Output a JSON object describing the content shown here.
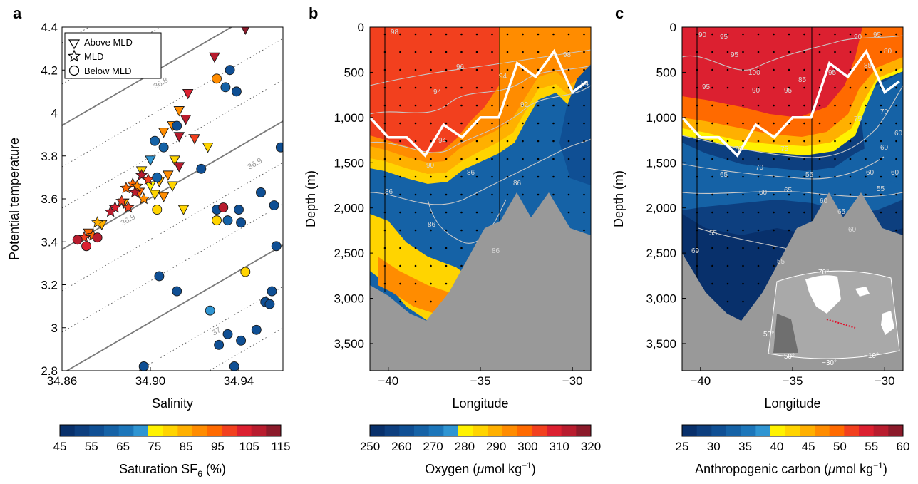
{
  "colors": {
    "ramp": [
      "#08306b",
      "#0d3f7f",
      "#0f4f94",
      "#1562a6",
      "#1c76ba",
      "#2f95d2",
      "#fff200",
      "#ffd400",
      "#ffb000",
      "#ff8c00",
      "#ff6a00",
      "#f2401e",
      "#dc2030",
      "#b81c2e",
      "#8b1a2a"
    ],
    "topo_gray": "#999999",
    "contour": "#c8c8c8",
    "mld_line": "#ffffff"
  },
  "chart_data": [
    {
      "panel": "a",
      "type": "scatter",
      "xlabel": "Salinity",
      "ylabel": "Potential temperature",
      "xlim": [
        34.86,
        34.96
      ],
      "ylim": [
        2.8,
        4.4
      ],
      "xticks": [
        "34.86",
        "34.90",
        "34.94"
      ],
      "yticks": [
        "2.8",
        "3",
        "3.2",
        "3.4",
        "3.6",
        "3.8",
        "4",
        "4.2",
        "4.4"
      ],
      "legend": {
        "position": "top-left",
        "entries": [
          "Above MLD",
          "MLD",
          "Below MLD"
        ]
      },
      "isopycnal_labels": [
        "36.8",
        "36.9",
        "36.9",
        "37"
      ],
      "colorbar": {
        "label": "Saturation SF",
        "label_sub": "6",
        "label_tail": " (%)",
        "ticks": [
          "45",
          "55",
          "65",
          "75",
          "85",
          "95",
          "105",
          "115"
        ]
      },
      "series": [
        {
          "marker": "triangle",
          "points": [
            [
              34.943,
              4.39,
              115
            ],
            [
              34.929,
              4.26,
              110
            ],
            [
              34.917,
              4.09,
              105
            ],
            [
              34.913,
              4.01,
              90
            ],
            [
              34.916,
              3.97,
              108
            ],
            [
              34.91,
              3.94,
              90
            ],
            [
              34.92,
              3.88,
              100
            ],
            [
              34.906,
              3.91,
              90
            ],
            [
              34.913,
              3.89,
              108
            ],
            [
              34.926,
              3.84,
              82
            ],
            [
              34.9,
              3.78,
              70
            ],
            [
              34.911,
              3.78,
              82
            ],
            [
              34.913,
              3.75,
              108
            ],
            [
              34.908,
              3.71,
              88
            ],
            [
              34.896,
              3.73,
              78
            ],
            [
              34.904,
              3.68,
              85
            ],
            [
              34.9,
              3.66,
              75
            ],
            [
              34.91,
              3.66,
              80
            ],
            [
              34.906,
              3.61,
              90
            ],
            [
              34.895,
              3.63,
              95
            ],
            [
              34.902,
              3.62,
              82
            ],
            [
              34.888,
              3.58,
              85
            ],
            [
              34.915,
              3.55,
              80
            ],
            [
              34.878,
              3.48,
              85
            ],
            [
              34.872,
              3.44,
              95
            ]
          ]
        },
        {
          "marker": "star",
          "points": [
            [
              34.896,
              3.71,
              110
            ],
            [
              34.899,
              3.69,
              100
            ],
            [
              34.892,
              3.67,
              95
            ],
            [
              34.894,
              3.66,
              88
            ],
            [
              34.889,
              3.65,
              92
            ],
            [
              34.893,
              3.63,
              108
            ],
            [
              34.897,
              3.6,
              90
            ],
            [
              34.887,
              3.59,
              98
            ],
            [
              34.884,
              3.56,
              105
            ],
            [
              34.89,
              3.56,
              100
            ],
            [
              34.882,
              3.54,
              110
            ],
            [
              34.876,
              3.49,
              85
            ],
            [
              34.874,
              3.43,
              95
            ],
            [
              34.87,
              3.42,
              100
            ]
          ]
        },
        {
          "marker": "circle",
          "points": [
            [
              34.936,
              4.2,
              55
            ],
            [
              34.93,
              4.16,
              88
            ],
            [
              34.934,
              4.12,
              60
            ],
            [
              34.939,
              4.1,
              55
            ],
            [
              34.912,
              3.94,
              55
            ],
            [
              34.902,
              3.87,
              60
            ],
            [
              34.906,
              3.84,
              60
            ],
            [
              34.959,
              3.84,
              55
            ],
            [
              34.923,
              3.74,
              55
            ],
            [
              34.903,
              3.7,
              60
            ],
            [
              34.95,
              3.63,
              55
            ],
            [
              34.93,
              3.55,
              55
            ],
            [
              34.933,
              3.56,
              108
            ],
            [
              34.94,
              3.55,
              55
            ],
            [
              34.956,
              3.57,
              55
            ],
            [
              34.903,
              3.55,
              82
            ],
            [
              34.935,
              3.5,
              60
            ],
            [
              34.941,
              3.49,
              55
            ],
            [
              34.93,
              3.5,
              80
            ],
            [
              34.867,
              3.41,
              108
            ],
            [
              34.871,
              3.38,
              105
            ],
            [
              34.876,
              3.42,
              108
            ],
            [
              34.957,
              3.38,
              55
            ],
            [
              34.943,
              3.26,
              82
            ],
            [
              34.904,
              3.24,
              55
            ],
            [
              34.912,
              3.17,
              55
            ],
            [
              34.955,
              3.17,
              55
            ],
            [
              34.952,
              3.12,
              55
            ],
            [
              34.954,
              3.11,
              55
            ],
            [
              34.927,
              3.08,
              70
            ],
            [
              34.935,
              2.97,
              55
            ],
            [
              34.948,
              2.99,
              55
            ],
            [
              34.941,
              2.94,
              55
            ],
            [
              34.931,
              2.92,
              55
            ],
            [
              34.897,
              2.82,
              55
            ],
            [
              34.938,
              2.82,
              55
            ]
          ]
        }
      ]
    },
    {
      "panel": "b",
      "type": "heatmap",
      "xlabel": "Longitude",
      "ylabel": "Depth (m)",
      "xlim": [
        -41,
        -29
      ],
      "ylim": [
        3800,
        0
      ],
      "xticks": [
        "−40",
        "−35",
        "−30"
      ],
      "yticks": [
        "0",
        "500",
        "1,000",
        "1,500",
        "2,000",
        "2,500",
        "3,000",
        "3,500"
      ],
      "contour_labels": [
        "98",
        "96",
        "94",
        "94",
        "94",
        "92",
        "90",
        "86",
        "86",
        "86",
        "86",
        "86",
        "98",
        "84"
      ],
      "mixed_layer_depth": [
        [
          -41,
          1000
        ],
        [
          -40,
          1220
        ],
        [
          -39,
          1220
        ],
        [
          -38,
          1420
        ],
        [
          -37,
          1080
        ],
        [
          -36,
          1220
        ],
        [
          -35,
          1000
        ],
        [
          -34,
          1000
        ],
        [
          -33,
          400
        ],
        [
          -32,
          550
        ],
        [
          -31,
          270
        ],
        [
          -30,
          720
        ],
        [
          -29.2,
          600
        ]
      ],
      "colorbar": {
        "label": "Oxygen (",
        "label_mu": "μ",
        "label_tail": "mol kg",
        "label_sup": "−1",
        "label_close": ")",
        "ticks": [
          "250",
          "260",
          "270",
          "280",
          "290",
          "300",
          "310",
          "320"
        ]
      }
    },
    {
      "panel": "c",
      "type": "heatmap",
      "xlabel": "Longitude",
      "ylabel": "Depth (m)",
      "xlim": [
        -41,
        -29
      ],
      "ylim": [
        3800,
        0
      ],
      "xticks": [
        "−40",
        "−35",
        "−30"
      ],
      "yticks": [
        "0",
        "500",
        "1,000",
        "1,500",
        "2,000",
        "2,500",
        "3,000",
        "3,500"
      ],
      "contour_labels": [
        "90",
        "95",
        "95",
        "95",
        "100",
        "90",
        "95",
        "85",
        "95",
        "90",
        "95",
        "80",
        "85",
        "75",
        "70",
        "65",
        "60",
        "55",
        "65",
        "60",
        "60",
        "60",
        "55",
        "60",
        "70",
        "75",
        "70",
        "65",
        "60",
        "60",
        "69",
        "55",
        "55"
      ],
      "mixed_layer_depth": [
        [
          -41,
          1000
        ],
        [
          -40,
          1220
        ],
        [
          -39,
          1220
        ],
        [
          -38,
          1420
        ],
        [
          -37,
          1080
        ],
        [
          -36,
          1220
        ],
        [
          -35,
          1000
        ],
        [
          -34,
          1000
        ],
        [
          -33,
          400
        ],
        [
          -32,
          550
        ],
        [
          -31,
          270
        ],
        [
          -30,
          720
        ],
        [
          -29.2,
          600
        ]
      ],
      "inset_map_labels": [
        "70°",
        "50°",
        "−50°",
        "−30°",
        "−10°"
      ],
      "colorbar": {
        "label": "Anthropogenic carbon (",
        "label_mu": "μ",
        "label_tail": "mol kg",
        "label_sup": "−1",
        "label_close": ")",
        "ticks": [
          "25",
          "30",
          "35",
          "40",
          "45",
          "50",
          "55",
          "60"
        ]
      }
    }
  ],
  "panel_labels": [
    "a",
    "b",
    "c"
  ]
}
